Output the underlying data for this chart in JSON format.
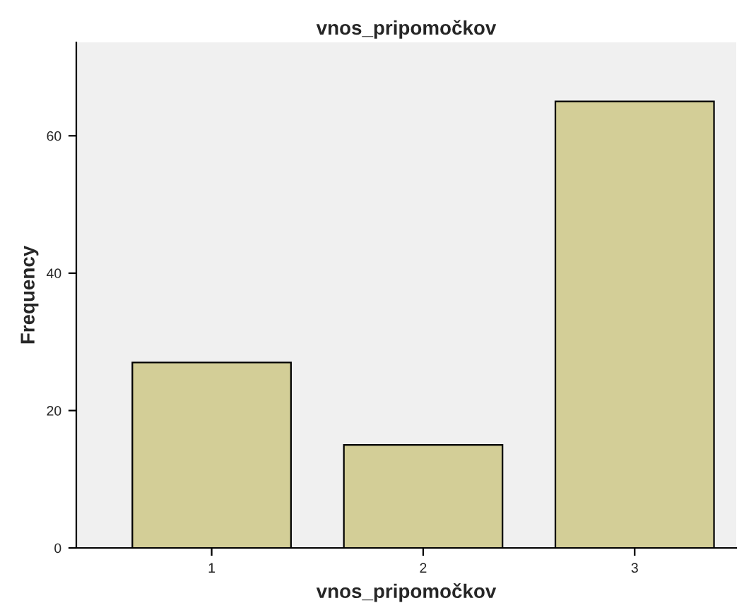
{
  "chart_data": {
    "type": "bar",
    "title": "vnos_pripomočkov",
    "xlabel": "vnos_pripomočkov",
    "ylabel": "Frequency",
    "categories": [
      "1",
      "2",
      "3"
    ],
    "values": [
      27,
      15,
      65
    ],
    "color": "#d3ce97",
    "ylim": [
      0,
      73.6
    ],
    "yticks": [
      0,
      20,
      40,
      60
    ],
    "grid": false,
    "legend": false
  }
}
